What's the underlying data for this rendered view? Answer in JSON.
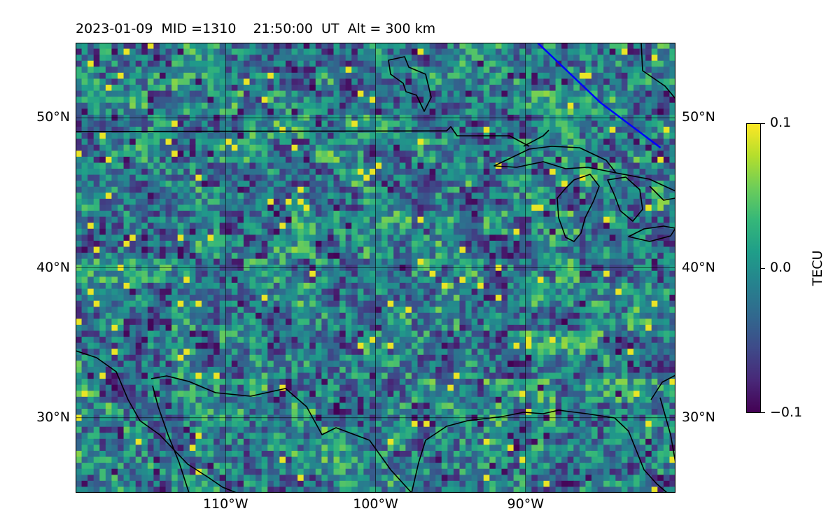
{
  "header": {
    "title": "2023-01-09  MID =1310    21:50:00  UT  Alt = 300 km"
  },
  "map": {
    "projection": "plate-carree",
    "lon_range": [
      -120,
      -80
    ],
    "lat_range": [
      25,
      55
    ],
    "lat_ticks": [
      {
        "value": 30,
        "label": "30°N"
      },
      {
        "value": 40,
        "label": "40°N"
      },
      {
        "value": 50,
        "label": "50°N"
      }
    ],
    "lon_ticks": [
      {
        "value": -110,
        "label": "110°W"
      },
      {
        "value": -100,
        "label": "100°W"
      },
      {
        "value": -90,
        "label": "90°W"
      }
    ],
    "colors": {
      "coastline": "#000000",
      "gridline": "#000000",
      "terminator_line": "#0000ff"
    },
    "overlay_line": [
      [
        -89.2,
        55.0
      ],
      [
        -85.0,
        51.0
      ],
      [
        -81.0,
        48.0
      ]
    ]
  },
  "colorbar": {
    "colormap": "viridis",
    "label": "TECU",
    "range": [
      -0.1,
      0.1
    ],
    "ticks": [
      {
        "value": 0.1,
        "label": "0.1"
      },
      {
        "value": 0.0,
        "label": "0.0"
      },
      {
        "value": -0.1,
        "label": "−0.1"
      }
    ]
  }
}
